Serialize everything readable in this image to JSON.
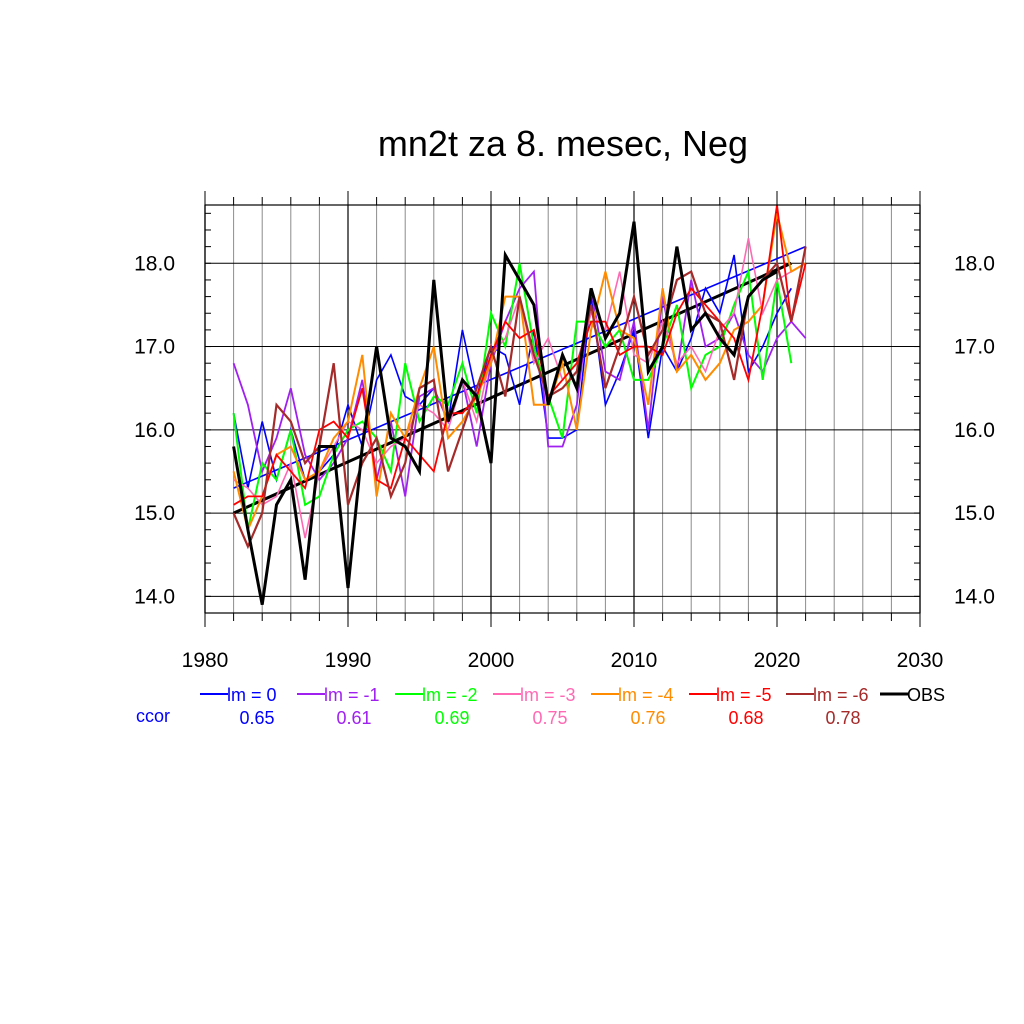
{
  "chart_data": {
    "type": "line",
    "title": "mn2t za 8. mesec, Neg",
    "xlabel": "",
    "ylabel": "",
    "xlim": [
      1980,
      2030
    ],
    "ylim": [
      13.8,
      18.7
    ],
    "x_ticks": [
      "1980",
      "1990",
      "2000",
      "2010",
      "2020",
      "2030"
    ],
    "y_ticks": [
      "14.0",
      "15.0",
      "16.0",
      "17.0",
      "18.0"
    ],
    "grid": true,
    "legend_position": "bottom",
    "ccor_label": "ccor",
    "series": [
      {
        "name": "lm = 0",
        "color": "#0000ff",
        "ccor": "0.65",
        "width": 1.6,
        "start": 1982,
        "values": [
          16.2,
          15.3,
          16.1,
          15.4,
          16.0,
          15.4,
          15.5,
          15.7,
          16.3,
          15.8,
          16.6,
          16.9,
          16.4,
          16.3,
          16.5,
          16.1,
          17.2,
          16.4,
          17.0,
          16.9,
          16.3,
          17.2,
          15.9,
          15.9,
          16.0,
          17.6,
          16.3,
          16.7,
          17.2,
          15.9,
          17.0,
          16.7,
          17.1,
          17.7,
          17.4,
          18.1,
          16.7,
          17.0,
          17.4,
          17.7
        ],
        "trend": [
          15.3,
          18.2
        ]
      },
      {
        "name": "lm = -1",
        "color": "#a020f0",
        "ccor": "0.61",
        "width": 1.8,
        "start": 1982,
        "values": [
          16.8,
          16.3,
          15.5,
          15.9,
          16.5,
          15.7,
          15.4,
          15.6,
          15.9,
          16.6,
          15.4,
          16.1,
          15.2,
          16.4,
          16.5,
          16.1,
          16.6,
          15.8,
          16.8,
          17.3,
          17.7,
          17.9,
          15.8,
          15.8,
          16.3,
          17.7,
          16.7,
          16.6,
          17.3,
          16.0,
          17.6,
          16.7,
          17.8,
          17.0,
          17.1,
          17.4,
          16.9,
          16.7,
          17.1,
          17.3,
          17.1
        ]
      },
      {
        "name": "lm = -2",
        "color": "#00ff00",
        "ccor": "0.69",
        "width": 2.0,
        "start": 1982,
        "values": [
          16.2,
          14.8,
          15.6,
          15.4,
          16.0,
          15.1,
          15.2,
          15.7,
          16.0,
          16.1,
          15.9,
          15.5,
          16.8,
          16.1,
          16.4,
          16.3,
          16.8,
          16.2,
          17.4,
          17.0,
          18.0,
          17.0,
          16.4,
          15.9,
          17.3,
          17.3,
          17.0,
          17.2,
          16.6,
          16.6,
          17.0,
          17.5,
          16.5,
          16.9,
          17.0,
          17.5,
          17.9,
          16.6,
          17.8,
          16.8
        ]
      },
      {
        "name": "lm = -3",
        "color": "#ff69b4",
        "ccor": "0.75",
        "width": 1.6,
        "start": 1982,
        "values": [
          15.4,
          15.3,
          15.1,
          15.2,
          15.6,
          14.7,
          15.5,
          15.8,
          16.1,
          16.0,
          15.6,
          15.8,
          15.9,
          16.3,
          16.2,
          16.0,
          16.6,
          16.1,
          16.9,
          17.1,
          17.6,
          16.8,
          17.1,
          16.6,
          16.8,
          17.4,
          17.2,
          17.9,
          16.9,
          16.8,
          17.3,
          16.8,
          17.0,
          16.7,
          17.2,
          17.4,
          18.3,
          17.4,
          17.8,
          17.9
        ]
      },
      {
        "name": "lm = -4",
        "color": "#ff8c00",
        "ccor": "0.76",
        "width": 2.0,
        "start": 1982,
        "values": [
          15.5,
          14.8,
          15.2,
          15.7,
          15.8,
          15.4,
          15.5,
          15.9,
          16.1,
          16.9,
          15.2,
          16.2,
          15.9,
          16.5,
          17.0,
          15.9,
          16.1,
          16.4,
          16.8,
          17.6,
          17.6,
          16.3,
          16.3,
          16.8,
          16.0,
          17.2,
          17.9,
          17.2,
          17.1,
          16.3,
          17.7,
          16.7,
          16.9,
          16.6,
          16.8,
          17.2,
          17.3,
          17.5,
          18.6,
          17.9,
          18.0
        ]
      },
      {
        "name": "lm = -5",
        "color": "#ff0000",
        "ccor": "0.68",
        "width": 1.8,
        "start": 1982,
        "values": [
          15.1,
          15.2,
          15.2,
          15.7,
          15.5,
          15.3,
          16.0,
          16.1,
          15.9,
          16.5,
          15.4,
          15.3,
          15.9,
          15.7,
          15.5,
          16.2,
          16.2,
          16.4,
          16.9,
          17.3,
          17.1,
          17.2,
          16.4,
          16.6,
          16.8,
          17.3,
          17.3,
          16.9,
          17.0,
          17.0,
          16.9,
          17.4,
          17.7,
          17.5,
          17.3,
          17.1,
          16.6,
          17.5,
          18.7,
          17.3,
          18.0
        ]
      },
      {
        "name": "lm = -6",
        "color": "#a52a2a",
        "ccor": "0.78",
        "width": 2.2,
        "start": 1982,
        "values": [
          15.0,
          14.6,
          15.0,
          16.3,
          16.1,
          15.6,
          15.8,
          16.8,
          15.1,
          15.6,
          15.9,
          15.2,
          15.6,
          16.5,
          16.6,
          15.5,
          16.0,
          16.5,
          17.0,
          16.4,
          17.6,
          16.9,
          16.4,
          16.5,
          16.7,
          17.5,
          16.5,
          17.0,
          17.6,
          16.9,
          17.2,
          17.8,
          17.9,
          17.4,
          17.3,
          16.6,
          17.6,
          17.8,
          18.0,
          17.3,
          18.2
        ]
      },
      {
        "name": "OBS",
        "color": "#000000",
        "ccor": "",
        "width": 3.0,
        "start": 1982,
        "values": [
          15.8,
          14.8,
          13.9,
          15.1,
          15.4,
          14.2,
          15.8,
          15.8,
          14.1,
          15.8,
          17.0,
          15.9,
          15.8,
          15.5,
          17.8,
          16.1,
          16.6,
          16.4,
          15.6,
          18.1,
          17.8,
          17.5,
          16.3,
          16.9,
          16.5,
          17.7,
          17.1,
          17.4,
          18.5,
          16.7,
          17.0,
          18.2,
          17.2,
          17.4,
          17.1,
          16.9,
          17.6,
          17.8,
          17.9
        ],
        "trend": [
          15.0,
          18.0
        ]
      }
    ]
  }
}
